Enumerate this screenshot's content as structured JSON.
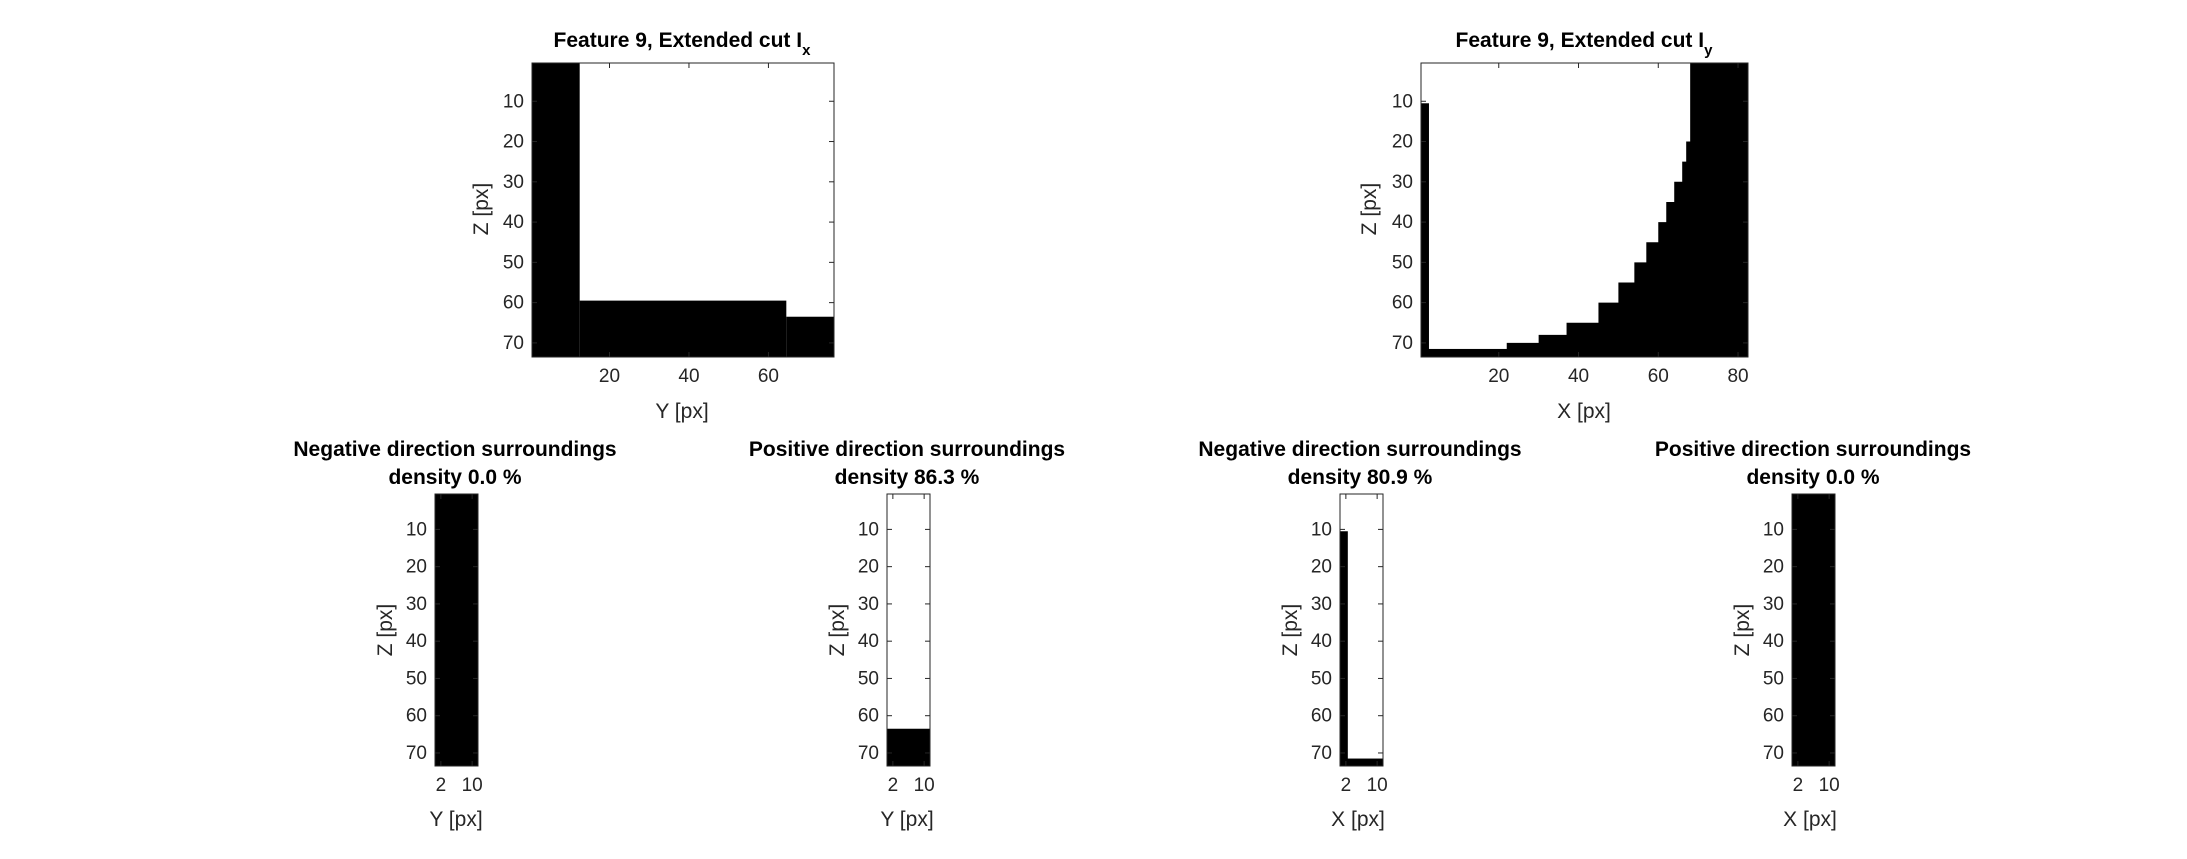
{
  "figure": {
    "top_left": {
      "title": "Feature 9, Extended cut I",
      "title_subscript": "x",
      "xlabel": "Y [px]",
      "ylabel": "Z [px]"
    },
    "top_right": {
      "title": "Feature 9, Extended cut I",
      "title_subscript": "y",
      "xlabel": "X [px]",
      "ylabel": "Z [px]"
    },
    "bottom_1": {
      "title_line1": "Negative direction surroundings",
      "title_line2": "density 0.0 %",
      "xlabel": "Y [px]",
      "ylabel": "Z [px]"
    },
    "bottom_2": {
      "title_line1": "Positive direction surroundings",
      "title_line2": "density 86.3 %",
      "xlabel": "Y [px]",
      "ylabel": "Z [px]"
    },
    "bottom_3": {
      "title_line1": "Negative direction surroundings",
      "title_line2": "density 80.9 %",
      "xlabel": "X [px]",
      "ylabel": "Z [px]"
    },
    "bottom_4": {
      "title_line1": "Positive direction surroundings",
      "title_line2": "density 0.0 %",
      "xlabel": "X [px]",
      "ylabel": "Z [px]"
    }
  },
  "chart_data": [
    {
      "type": "heatmap",
      "title": "Feature 9, Extended cut Ix",
      "xlabel": "Y [px]",
      "ylabel": "Z [px]",
      "xlim": [
        0.5,
        76.5
      ],
      "ylim": [
        0.5,
        73.5
      ],
      "x_ticks": [
        20,
        40,
        60
      ],
      "y_ticks": [
        10,
        20,
        30,
        40,
        50,
        60,
        70
      ],
      "colormap": [
        "#000000",
        "#ffffff"
      ],
      "filled_regions": [
        {
          "x": [
            0.5,
            12.5
          ],
          "y": [
            0.5,
            73.5
          ]
        },
        {
          "x": [
            12.5,
            64.5
          ],
          "y": [
            59.5,
            73.5
          ]
        },
        {
          "x": [
            64.5,
            76.5
          ],
          "y": [
            63.5,
            73.5
          ]
        }
      ]
    },
    {
      "type": "heatmap",
      "title": "Feature 9, Extended cut Iy",
      "xlabel": "X [px]",
      "ylabel": "Z [px]",
      "xlim": [
        0.5,
        82.5
      ],
      "ylim": [
        0.5,
        73.5
      ],
      "x_ticks": [
        20,
        40,
        60,
        80
      ],
      "y_ticks": [
        10,
        20,
        30,
        40,
        50,
        60,
        70
      ],
      "colormap": [
        "#000000",
        "#ffffff"
      ],
      "filled_regions": [
        {
          "x": [
            0.5,
            2.5
          ],
          "y": [
            10.5,
            73.5
          ]
        },
        {
          "x": [
            0.5,
            82.5
          ],
          "y": [
            71.5,
            73.5
          ]
        }
      ],
      "boundary_profile": {
        "description": "black to the right of boundary x for each z",
        "z": [
          0.5,
          15,
          20,
          25,
          30,
          35,
          40,
          45,
          50,
          55,
          60,
          65,
          68,
          70,
          71.5
        ],
        "x": [
          68,
          68,
          67,
          66,
          64,
          62,
          60,
          57,
          54,
          50,
          45,
          37,
          30,
          22,
          15
        ]
      }
    },
    {
      "type": "heatmap",
      "title": "Negative direction surroundings density 0.0 %",
      "xlabel": "Y [px]",
      "ylabel": "Z [px]",
      "xlim": [
        0.5,
        11.5
      ],
      "ylim": [
        0.5,
        73.5
      ],
      "x_ticks": [
        2,
        10
      ],
      "y_ticks": [
        10,
        20,
        30,
        40,
        50,
        60,
        70
      ],
      "colormap": [
        "#000000",
        "#ffffff"
      ],
      "filled_regions": [
        {
          "x": [
            0.5,
            11.5
          ],
          "y": [
            0.5,
            73.5
          ]
        }
      ]
    },
    {
      "type": "heatmap",
      "title": "Positive direction surroundings density 86.3 %",
      "xlabel": "Y [px]",
      "ylabel": "Z [px]",
      "xlim": [
        0.5,
        11.5
      ],
      "ylim": [
        0.5,
        73.5
      ],
      "x_ticks": [
        2,
        10
      ],
      "y_ticks": [
        10,
        20,
        30,
        40,
        50,
        60,
        70
      ],
      "colormap": [
        "#000000",
        "#ffffff"
      ],
      "filled_regions": [
        {
          "x": [
            0.5,
            11.5
          ],
          "y": [
            63.5,
            73.5
          ]
        }
      ]
    },
    {
      "type": "heatmap",
      "title": "Negative direction surroundings density 80.9 %",
      "xlabel": "X [px]",
      "ylabel": "Z [px]",
      "xlim": [
        0.5,
        11.5
      ],
      "ylim": [
        0.5,
        73.5
      ],
      "x_ticks": [
        2,
        10
      ],
      "y_ticks": [
        10,
        20,
        30,
        40,
        50,
        60,
        70
      ],
      "colormap": [
        "#000000",
        "#ffffff"
      ],
      "filled_regions": [
        {
          "x": [
            0.5,
            2.5
          ],
          "y": [
            10.5,
            73.5
          ]
        },
        {
          "x": [
            0.5,
            11.5
          ],
          "y": [
            71.5,
            73.5
          ]
        }
      ]
    },
    {
      "type": "heatmap",
      "title": "Positive direction surroundings density 0.0 %",
      "xlabel": "X [px]",
      "ylabel": "Z [px]",
      "xlim": [
        0.5,
        11.5
      ],
      "ylim": [
        0.5,
        73.5
      ],
      "x_ticks": [
        2,
        10
      ],
      "y_ticks": [
        10,
        20,
        30,
        40,
        50,
        60,
        70
      ],
      "colormap": [
        "#000000",
        "#ffffff"
      ],
      "filled_regions": [
        {
          "x": [
            0.5,
            11.5
          ],
          "y": [
            0.5,
            73.5
          ]
        }
      ]
    }
  ]
}
